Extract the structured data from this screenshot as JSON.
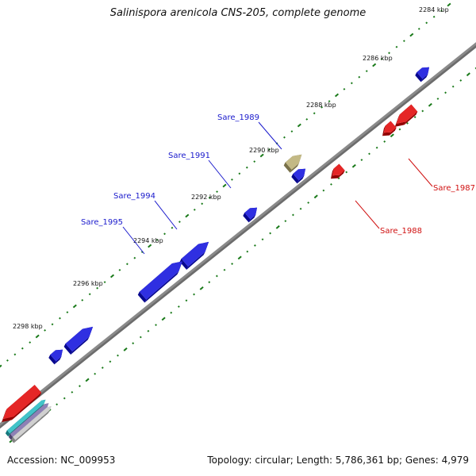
{
  "title": "Salinispora arenicola CNS-205, complete genome",
  "footer": {
    "accession": "Accession: NC_009953",
    "summary": "Topology: circular; Length: 5,786,361 bp; Genes: 4,979"
  },
  "colors": {
    "backbone": "#8a8a8a",
    "tick": "#1a7a1a",
    "forward_gene": "#0a0adc",
    "reverse_gene": "#e00000",
    "rna": "#b8ad70",
    "label_forward": "#1a1acc",
    "label_reverse": "#d01010"
  },
  "scale_labels": [
    "2284 kbp",
    "2286 kbp",
    "2288 kbp",
    "2290 kbp",
    "2292 kbp",
    "2294 kbp",
    "2296 kbp",
    "2298 kbp"
  ],
  "gene_labels": [
    {
      "name": "Sare_1989",
      "strand": "forward"
    },
    {
      "name": "Sare_1991",
      "strand": "forward"
    },
    {
      "name": "Sare_1994",
      "strand": "forward"
    },
    {
      "name": "Sare_1995",
      "strand": "forward"
    },
    {
      "name": "Sare_1987",
      "strand": "reverse"
    },
    {
      "name": "Sare_1988",
      "strand": "reverse"
    }
  ]
}
